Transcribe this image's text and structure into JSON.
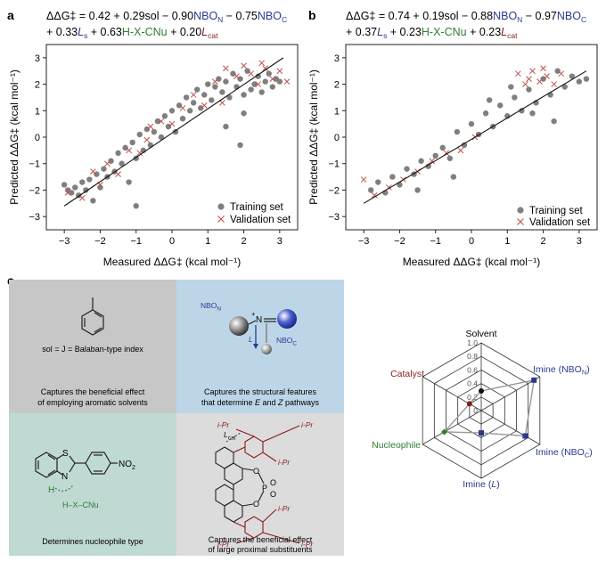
{
  "panel_a": {
    "letter": "a",
    "equation_line1_pre": "ΔΔG‡ = 0.42 + 0.29sol − 0.90",
    "equation_line1_nbon": "NBO",
    "equation_line1_nbon_sub": "N",
    "equation_line1_mid": " − 0.75",
    "equation_line1_nboc": "NBO",
    "equation_line1_nboc_sub": "C",
    "equation_line2_pre": "+ 0.33",
    "equation_line2_ls": "L",
    "equation_line2_ls_sub": "s",
    "equation_line2_mid": " + 0.63",
    "equation_line2_hx": "H-X-CNu",
    "equation_line2_mid2": " + 0.20",
    "equation_line2_lcat": "L",
    "equation_line2_lcat_sub": "cat"
  },
  "panel_b": {
    "letter": "b",
    "equation_line1_pre": "ΔΔG‡ = 0.74 + 0.19sol − 0.88",
    "equation_line1_nbon": "NBO",
    "equation_line1_nbon_sub": "N",
    "equation_line1_mid": " − 0.97",
    "equation_line1_nboc": "NBO",
    "equation_line1_nboc_sub": "C",
    "equation_line2_pre": "+ 0.37",
    "equation_line2_ls": "L",
    "equation_line2_ls_sub": "s",
    "equation_line2_mid": " + 0.23",
    "equation_line2_hx": "H-X-CNu",
    "equation_line2_mid2": " + 0.23",
    "equation_line2_lcat": "L",
    "equation_line2_lcat_sub": "cat"
  },
  "axes": {
    "xlabel": "Measured ΔΔG‡ (kcal mol⁻¹)",
    "ylabel": "Predicted ΔΔG‡ (kcal mol⁻¹)",
    "x_ticks": [
      "−3",
      "−2",
      "−1",
      "0",
      "1",
      "2",
      "3"
    ],
    "y_ticks": [
      "3",
      "2",
      "1",
      "0",
      "−1",
      "−2",
      "−3"
    ]
  },
  "legend": {
    "training": "Training set",
    "validation": "Validation set"
  },
  "colors": {
    "training": "#7f7f7f",
    "validation": "#c0504d",
    "navy": "#2b3a8f",
    "green": "#2e7d32",
    "maroon": "#8b1a1a",
    "box_gray": "#c7c7c7",
    "box_blue": "#bcd6e8",
    "box_teal": "#bfd9d3",
    "box_lightgray": "#dcdcdc"
  },
  "chart_data": [
    {
      "type": "scatter",
      "panel": "a",
      "xlabel": "Measured ΔΔG‡ (kcal mol⁻¹)",
      "ylabel": "Predicted ΔΔG‡ (kcal mol⁻¹)",
      "xlim": [
        -3.5,
        3.5
      ],
      "ylim": [
        -3.5,
        3.5
      ],
      "fit_line": {
        "x": [
          -3.0,
          3.1
        ],
        "y": [
          -2.6,
          3.0
        ]
      },
      "legend_position": "bottom-right",
      "series": [
        {
          "name": "Training set",
          "marker": "circle",
          "points": [
            [
              -3.0,
              -1.8
            ],
            [
              -2.9,
              -2.0
            ],
            [
              -2.8,
              -2.1
            ],
            [
              -2.7,
              -1.9
            ],
            [
              -2.6,
              -2.2
            ],
            [
              -2.5,
              -1.7
            ],
            [
              -2.4,
              -2.0
            ],
            [
              -2.3,
              -1.6
            ],
            [
              -2.2,
              -2.4
            ],
            [
              -2.1,
              -1.4
            ],
            [
              -2.0,
              -1.9
            ],
            [
              -1.9,
              -1.2
            ],
            [
              -1.8,
              -1.5
            ],
            [
              -1.7,
              -0.9
            ],
            [
              -1.6,
              -1.3
            ],
            [
              -1.5,
              -0.6
            ],
            [
              -1.4,
              -1.0
            ],
            [
              -1.3,
              -0.4
            ],
            [
              -1.2,
              -1.7
            ],
            [
              -1.1,
              -0.2
            ],
            [
              -1.0,
              -0.8
            ],
            [
              -0.9,
              0.1
            ],
            [
              -0.8,
              -0.5
            ],
            [
              -0.7,
              0.3
            ],
            [
              -0.6,
              -0.3
            ],
            [
              -0.5,
              0.2
            ],
            [
              -0.4,
              0.6
            ],
            [
              -0.3,
              0.0
            ],
            [
              -0.2,
              0.8
            ],
            [
              -0.1,
              0.4
            ],
            [
              0.0,
              1.0
            ],
            [
              0.1,
              0.2
            ],
            [
              0.2,
              1.2
            ],
            [
              0.3,
              0.7
            ],
            [
              0.4,
              1.5
            ],
            [
              0.5,
              1.0
            ],
            [
              0.6,
              1.3
            ],
            [
              0.7,
              1.8
            ],
            [
              0.8,
              1.1
            ],
            [
              0.9,
              1.6
            ],
            [
              1.0,
              2.0
            ],
            [
              1.1,
              1.4
            ],
            [
              1.2,
              1.9
            ],
            [
              1.3,
              2.2
            ],
            [
              1.4,
              1.7
            ],
            [
              1.5,
              2.1
            ],
            [
              1.6,
              1.5
            ],
            [
              1.7,
              2.4
            ],
            [
              1.8,
              1.9
            ],
            [
              1.9,
              2.2
            ],
            [
              2.0,
              1.6
            ],
            [
              2.1,
              2.5
            ],
            [
              2.2,
              1.8
            ],
            [
              2.3,
              2.0
            ],
            [
              2.4,
              2.3
            ],
            [
              2.5,
              1.7
            ],
            [
              2.6,
              2.1
            ],
            [
              2.7,
              2.4
            ],
            [
              2.8,
              1.9
            ],
            [
              2.9,
              2.2
            ],
            [
              3.0,
              2.1
            ],
            [
              -1.0,
              -2.6
            ],
            [
              1.9,
              -0.3
            ],
            [
              1.5,
              0.4
            ],
            [
              2.0,
              0.9
            ]
          ]
        },
        {
          "name": "Validation set",
          "marker": "x",
          "points": [
            [
              -2.9,
              -2.1
            ],
            [
              -2.5,
              -2.3
            ],
            [
              -2.0,
              -1.8
            ],
            [
              -1.8,
              -1.0
            ],
            [
              -1.5,
              -1.4
            ],
            [
              -1.2,
              -0.5
            ],
            [
              -0.9,
              -0.6
            ],
            [
              -0.6,
              0.4
            ],
            [
              -0.3,
              0.6
            ],
            [
              0.0,
              0.5
            ],
            [
              0.3,
              1.1
            ],
            [
              0.6,
              1.6
            ],
            [
              0.9,
              1.2
            ],
            [
              1.2,
              2.1
            ],
            [
              1.5,
              2.6
            ],
            [
              1.8,
              2.3
            ],
            [
              2.0,
              2.7
            ],
            [
              2.2,
              2.4
            ],
            [
              2.4,
              2.0
            ],
            [
              2.6,
              2.6
            ],
            [
              2.8,
              2.2
            ],
            [
              3.0,
              2.5
            ],
            [
              3.2,
              2.1
            ],
            [
              -2.2,
              -1.3
            ],
            [
              -0.7,
              -0.1
            ],
            [
              1.4,
              1.3
            ],
            [
              2.5,
              2.8
            ]
          ]
        }
      ]
    },
    {
      "type": "scatter",
      "panel": "b",
      "xlabel": "Measured ΔΔG‡ (kcal mol⁻¹)",
      "ylabel": "Predicted ΔΔG‡ (kcal mol⁻¹)",
      "xlim": [
        -3.5,
        3.5
      ],
      "ylim": [
        -3.5,
        3.5
      ],
      "fit_line": {
        "x": [
          -3.0,
          3.2
        ],
        "y": [
          -2.5,
          2.5
        ]
      },
      "legend_position": "bottom-right",
      "series": [
        {
          "name": "Training set",
          "marker": "circle",
          "points": [
            [
              -2.8,
              -2.0
            ],
            [
              -2.6,
              -1.7
            ],
            [
              -2.4,
              -2.1
            ],
            [
              -2.2,
              -1.5
            ],
            [
              -2.0,
              -1.8
            ],
            [
              -1.8,
              -1.2
            ],
            [
              -1.6,
              -1.4
            ],
            [
              -1.4,
              -0.9
            ],
            [
              -1.2,
              -1.1
            ],
            [
              -1.0,
              -0.7
            ],
            [
              -0.8,
              -0.4
            ],
            [
              -0.6,
              -0.8
            ],
            [
              -0.4,
              0.2
            ],
            [
              -0.2,
              -0.3
            ],
            [
              0.0,
              0.5
            ],
            [
              0.2,
              0.1
            ],
            [
              0.4,
              0.9
            ],
            [
              0.6,
              0.4
            ],
            [
              0.8,
              1.2
            ],
            [
              1.0,
              0.8
            ],
            [
              1.2,
              1.5
            ],
            [
              1.4,
              1.0
            ],
            [
              1.6,
              1.8
            ],
            [
              1.8,
              1.3
            ],
            [
              2.0,
              2.2
            ],
            [
              2.2,
              1.6
            ],
            [
              2.4,
              2.5
            ],
            [
              2.6,
              1.9
            ],
            [
              2.8,
              2.3
            ],
            [
              3.0,
              2.1
            ],
            [
              3.2,
              2.2
            ],
            [
              0.5,
              1.4
            ],
            [
              1.1,
              1.9
            ],
            [
              1.7,
              0.9
            ],
            [
              2.3,
              0.6
            ],
            [
              -1.5,
              -2.0
            ],
            [
              -0.5,
              -1.5
            ]
          ]
        },
        {
          "name": "Validation set",
          "marker": "x",
          "points": [
            [
              -3.0,
              -1.6
            ],
            [
              -2.7,
              -2.2
            ],
            [
              -2.3,
              -1.9
            ],
            [
              -1.9,
              -1.6
            ],
            [
              -1.5,
              -1.3
            ],
            [
              -1.1,
              -0.9
            ],
            [
              -0.7,
              -0.6
            ],
            [
              -0.3,
              -0.5
            ],
            [
              0.1,
              0.0
            ],
            [
              1.3,
              2.4
            ],
            [
              1.5,
              2.0
            ],
            [
              1.7,
              2.5
            ],
            [
              1.9,
              2.1
            ],
            [
              2.1,
              2.3
            ],
            [
              2.3,
              2.0
            ],
            [
              2.5,
              2.4
            ],
            [
              1.6,
              2.2
            ],
            [
              2.0,
              2.6
            ]
          ]
        }
      ]
    },
    {
      "type": "radar",
      "panel": "c",
      "axes": [
        "Solvent",
        "Imine (NBO_N)",
        "Imine (NBO_C)",
        "Imine (L)",
        "Nucleophile",
        "Catalyst"
      ],
      "ticks": [
        "0",
        "0.2",
        "0.4",
        "0.6",
        "0.8",
        "1.0"
      ],
      "rlim": [
        0,
        1.0
      ],
      "series": [
        {
          "name": "",
          "values": [
            0.29,
            0.9,
            0.75,
            0.33,
            0.63,
            0.2
          ],
          "color": "#555555"
        }
      ],
      "marker_colors": [
        "#111111",
        "#2b3a8f",
        "#2b3a8f",
        "#2b3a8f",
        "#2e7d32",
        "#8b1a1a"
      ]
    }
  ],
  "panel_c": {
    "letter": "c",
    "box1_formula": "sol = J = Balaban-type index",
    "box1_caption1": "Captures the beneficial effect",
    "box1_caption2": "of employing aromatic solvents",
    "box2_nbon": "NBO",
    "box2_nbon_sub": "N",
    "box2_nboc": "NBO",
    "box2_nboc_sub": "C",
    "box2_l": "L",
    "box2_n": "N",
    "box2_plus": "+",
    "box2_caption1": "Captures the structural features",
    "box2_caption2_pre": "that determine ",
    "box2_caption2_e": "E",
    "box2_caption2_mid": " and ",
    "box2_caption2_z": "Z",
    "box2_caption2_post": " pathways",
    "box3_s": "S",
    "box3_n": "N",
    "box3_h": "H",
    "box3_no2": "NO",
    "box3_no2_sub": "2",
    "box3_hx": "H–X–CNu",
    "box3_caption": "Determines nucleophile type",
    "box4_lcat": "L",
    "box4_lcat_sub": "cat",
    "box4_ipr": "i-Pr",
    "box4_o": "O",
    "box4_p": "P",
    "box4_caption1": "Captures the beneficial effect",
    "box4_caption2": "of large proximal substituents",
    "radar_solvent": "Solvent",
    "radar_nbon": "Imine (NBO",
    "radar_nbon_sub": "N",
    "radar_nboc": "Imine (NBO",
    "radar_nboc_sub": "C",
    "radar_l_pre": "Imine (",
    "radar_l": "L",
    "radar_close": ")",
    "radar_nucleophile": "Nucleophile",
    "radar_catalyst": "Catalyst"
  }
}
